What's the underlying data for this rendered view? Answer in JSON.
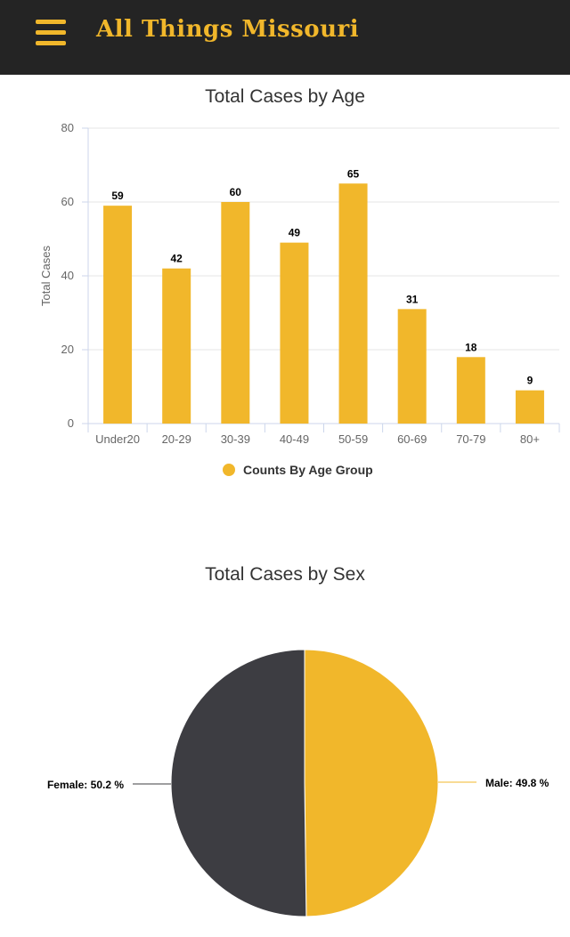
{
  "header": {
    "title": "All Things Missouri",
    "menu_icon": "hamburger-menu-icon",
    "accent_color": "#f1b72b",
    "background_color": "#242424"
  },
  "chart_data": [
    {
      "type": "bar",
      "title": "Total Cases by Age",
      "ylabel": "Total Cases",
      "xlabel": "",
      "categories": [
        "Under20",
        "20-29",
        "30-39",
        "40-49",
        "50-59",
        "60-69",
        "70-79",
        "80+"
      ],
      "values": [
        59,
        42,
        60,
        49,
        65,
        31,
        18,
        9
      ],
      "ylim": [
        0,
        80
      ],
      "yticks": [
        0,
        20,
        40,
        60,
        80
      ],
      "grid": true,
      "legend": {
        "placement": "bottom-center",
        "label": "Counts By Age Group"
      },
      "color": "#f1b72b"
    },
    {
      "type": "pie",
      "title": "Total Cases by Sex",
      "slices": [
        {
          "label": "Male",
          "value": 49.8,
          "color": "#f1b72b",
          "data_label": "Male: 49.8 %"
        },
        {
          "label": "Female",
          "value": 50.2,
          "color": "#3d3d42",
          "data_label": "Female: 50.2 %"
        }
      ]
    }
  ]
}
